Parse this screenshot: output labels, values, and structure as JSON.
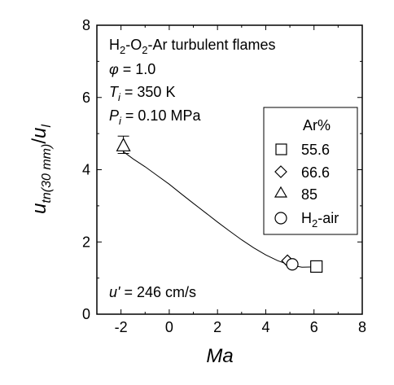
{
  "chart_data": {
    "type": "scatter",
    "xlabel": "Ma",
    "ylabel": {
      "main": "u",
      "main_sub": "tn(30 mm)",
      "sep": "/",
      "den": "u",
      "den_sub": "l"
    },
    "xlim": [
      -3,
      8
    ],
    "ylim": [
      0,
      8
    ],
    "x_ticks": [
      "-2",
      "0",
      "2",
      "4",
      "6",
      "8"
    ],
    "y_ticks": [
      "0",
      "2",
      "4",
      "6",
      "8"
    ],
    "x_tick_values": [
      -2,
      0,
      2,
      4,
      6,
      8
    ],
    "y_tick_values": [
      0,
      2,
      4,
      6,
      8
    ],
    "grid": false,
    "annotations": {
      "mixture": {
        "a": "H",
        "a_sub": "2",
        "b": "-O",
        "b_sub": "2",
        "c": "-Ar turbulent flames"
      },
      "phi": {
        "sym": "φ",
        "rest": " = 1.0"
      },
      "ti": {
        "sym": "T",
        "sub": "i",
        "rest": " = 350 K"
      },
      "pi": {
        "sym": "P",
        "sub": "i",
        "rest": " = 0.10 MPa"
      },
      "urms": {
        "sym": "u'",
        "rest": " = 246 cm/s"
      }
    },
    "legend": {
      "title": "Ar%",
      "position": "right",
      "entries": [
        {
          "label": "55.6",
          "marker": "square"
        },
        {
          "label": "66.6",
          "marker": "diamond"
        },
        {
          "label": "85",
          "marker": "triangle"
        },
        {
          "label": "H",
          "label_sub": "2",
          "label_rest": "-air",
          "marker": "circle"
        }
      ]
    },
    "series": [
      {
        "name": "55.6",
        "marker": "square",
        "points": [
          {
            "x": 6.1,
            "y": 1.32
          }
        ]
      },
      {
        "name": "66.6",
        "marker": "diamond",
        "points": [
          {
            "x": 4.9,
            "y": 1.48
          }
        ]
      },
      {
        "name": "85",
        "marker": "triangle",
        "points": [
          {
            "x": -1.9,
            "y": 4.68
          }
        ],
        "error_y": [
          4.45,
          4.93
        ]
      },
      {
        "name": "H2-air",
        "marker": "circle",
        "points": [
          {
            "x": 5.1,
            "y": 1.38
          }
        ]
      }
    ],
    "fit_curve": {
      "x": [
        -1.9,
        -1.5,
        -1.0,
        -0.5,
        0.0,
        0.5,
        1.0,
        1.5,
        2.0,
        2.5,
        3.0,
        3.5,
        4.0,
        4.5,
        5.0,
        5.5,
        6.1
      ],
      "y": [
        4.5,
        4.3,
        4.08,
        3.84,
        3.6,
        3.33,
        3.07,
        2.81,
        2.55,
        2.3,
        2.06,
        1.84,
        1.64,
        1.48,
        1.36,
        1.3,
        1.31
      ]
    }
  }
}
